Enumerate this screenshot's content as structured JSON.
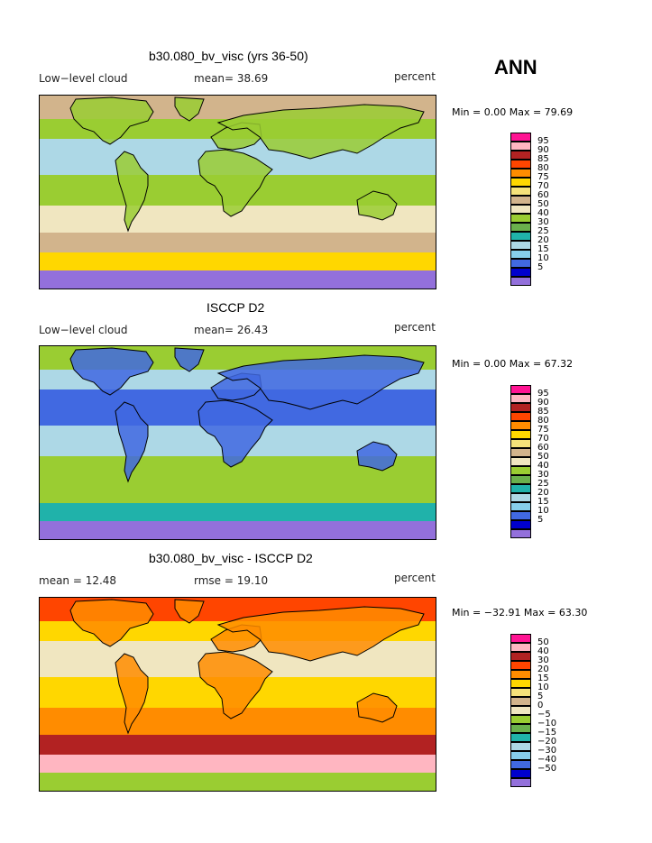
{
  "season": "ANN",
  "unit": "percent",
  "land_paths": [
    "M40 4 L80 2 L118 6 L126 18 L120 28 L100 34 L90 46 L78 54 L70 50 L60 40 L48 36 L38 26 L34 14 Z",
    "M150 2 L182 4 L176 20 L166 28 L156 22 L150 12 Z",
    "M94 62 L104 66 L112 80 L120 88 L120 100 L116 116 L110 128 L102 140 L98 150 L94 138 L96 122 L92 108 L88 96 L86 84 L84 72 Z",
    "M190 46 L206 36 L224 30 L244 32 L246 46 L238 54 L226 58 L214 60 L198 58 Z",
    "M184 62 L206 60 L226 64 L240 70 L258 82 L250 90 L244 102 L234 114 L224 128 L212 134 L204 128 L202 112 L194 100 L186 96 L178 88 L176 72 Z",
    "M198 30 L226 22 L270 16 L310 14 L360 10 L400 12 L426 18 L420 30 L400 36 L382 46 L370 54 L352 64 L336 60 L320 64 L300 70 L286 66 L270 62 L254 60 L244 46 L230 36 L214 38 Z",
    "M352 116 L370 106 L386 110 L396 120 L392 132 L380 138 L366 134 L354 132 Z"
  ],
  "colorbar_palette": [
    "#ff1493",
    "#ffb6c1",
    "#b22222",
    "#ff4500",
    "#ff8c00",
    "#ffd700",
    "#f5e27a",
    "#d2b48c",
    "#f0e6c0",
    "#9acd32",
    "#6ab04c",
    "#20b2aa",
    "#add8e6",
    "#87ceeb",
    "#4169e1",
    "#0000cd",
    "#9370db"
  ],
  "panels": [
    {
      "title": "b30.080_bv_visc (yrs 36-50)",
      "left_label": "Low−level cloud",
      "mid_label": "mean=  38.69",
      "right_label": "percent",
      "minmax": "Min =    0.00 Max =   79.69",
      "ticks": [
        "95",
        "90",
        "85",
        "80",
        "75",
        "70",
        "60",
        "50",
        "40",
        "30",
        "25",
        "20",
        "15",
        "10",
        "5"
      ],
      "zone_colors": [
        "#d2b48c",
        "#9acd32",
        "#add8e6",
        "#9acd32",
        "#f0e6c0",
        "#d2b48c",
        "#ffd700",
        "#9370db"
      ],
      "land_color": "#9acd32"
    },
    {
      "title": "ISCCP D2",
      "left_label": "Low−level cloud",
      "mid_label": "mean=  26.43",
      "right_label": "percent",
      "minmax": "Min =    0.00 Max =   67.32",
      "ticks": [
        "95",
        "90",
        "85",
        "80",
        "75",
        "70",
        "60",
        "50",
        "40",
        "30",
        "25",
        "20",
        "15",
        "10",
        "5"
      ],
      "zone_colors": [
        "#9acd32",
        "#add8e6",
        "#4169e1",
        "#add8e6",
        "#9acd32",
        "#9acd32",
        "#20b2aa",
        "#9370db"
      ],
      "land_color": "#4169e1"
    },
    {
      "title": "b30.080_bv_visc - ISCCP D2",
      "left_label": "mean  =   12.48",
      "mid_label": "rmse  =   19.10",
      "right_label": "percent",
      "minmax": "Min = −32.91 Max =   63.30",
      "ticks": [
        "50",
        "40",
        "30",
        "20",
        "15",
        "10",
        "5",
        "0",
        "−5",
        "−10",
        "−15",
        "−20",
        "−30",
        "−40",
        "−50"
      ],
      "zone_colors": [
        "#ff4500",
        "#ffd700",
        "#f0e6c0",
        "#ffd700",
        "#ff8c00",
        "#b22222",
        "#ffb6c1",
        "#9acd32"
      ],
      "land_color": "#ff8c00"
    }
  ]
}
